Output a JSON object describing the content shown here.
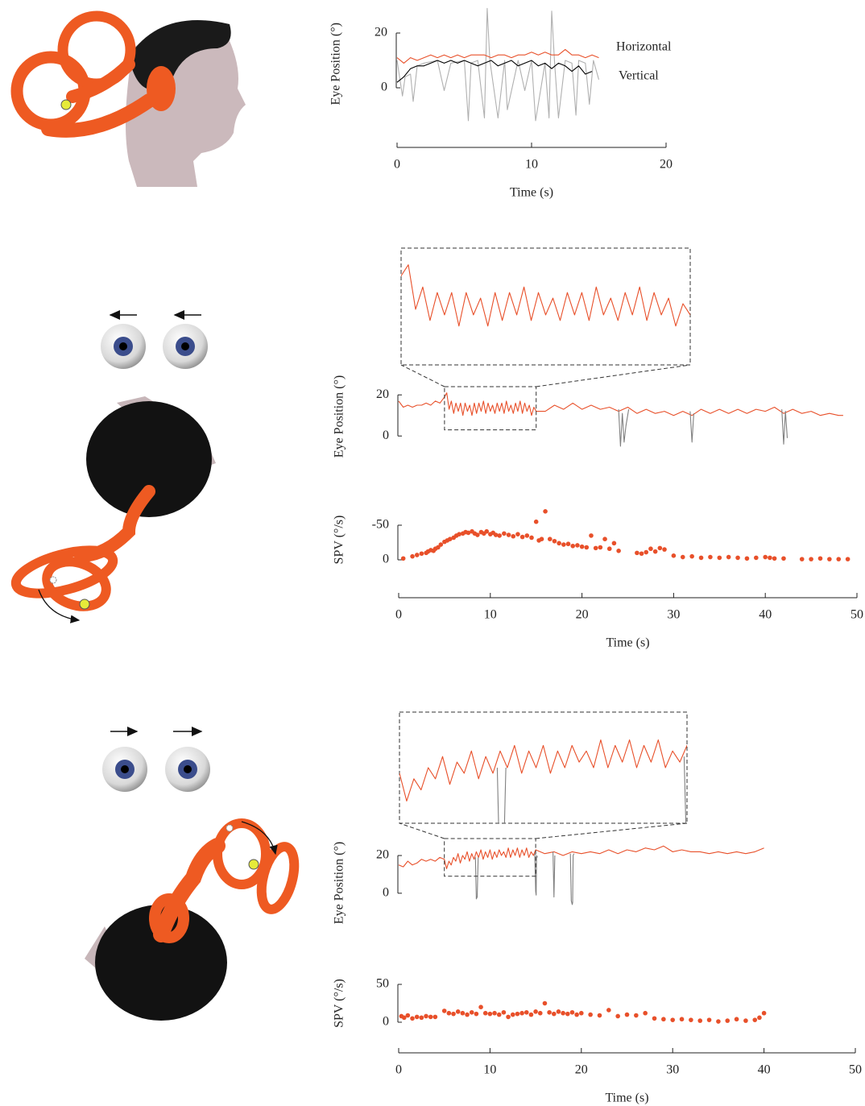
{
  "chart_data": [
    {
      "type": "line",
      "ylabel": "Eye Position (°)",
      "xlabel": "Time (s)",
      "xlim": [
        0,
        20
      ],
      "xticks": [
        0,
        10,
        20
      ],
      "ylim": [
        -12.5,
        30
      ],
      "yticks": [
        0,
        20
      ],
      "legend": "right",
      "series": [
        {
          "color": "#b0b0b0",
          "x": [
            0,
            0.4,
            0.6,
            1,
            1.2,
            1.5,
            2,
            3,
            3.5,
            4,
            5,
            5.3,
            5.5,
            6,
            6.5,
            6.7,
            6.9,
            7.5,
            8,
            8.2,
            9,
            9.5,
            10,
            10.3,
            11,
            11.3,
            11.5,
            11.7,
            12,
            12.5,
            13,
            13.3,
            13.5,
            14,
            14.3,
            14.6,
            15
          ],
          "values": [
            10,
            -3,
            4,
            5,
            -5,
            8,
            9,
            10,
            -1,
            9,
            10,
            -12,
            9,
            10,
            -11,
            29,
            10,
            -11,
            10,
            -8,
            10,
            -1,
            10,
            -12,
            9,
            -11,
            28,
            10,
            -11,
            10,
            9,
            -10,
            10,
            9,
            -6,
            10,
            3
          ]
        },
        {
          "name": "Vertical",
          "color": "#000000",
          "x": [
            0,
            0.5,
            1,
            1.5,
            2,
            2.5,
            3,
            3.5,
            4,
            4.5,
            5,
            5.5,
            6,
            6.5,
            7,
            7.5,
            8,
            8.5,
            9,
            9.5,
            10,
            10.5,
            11,
            11.5,
            12,
            12.5,
            13,
            13.5,
            14,
            14.5
          ],
          "values": [
            2,
            4,
            7,
            8,
            8,
            9,
            10,
            9,
            10,
            9,
            10,
            9,
            8,
            9,
            10,
            8,
            9,
            10,
            8,
            9,
            10,
            8,
            9,
            7,
            9,
            8,
            6,
            8,
            5,
            6
          ]
        },
        {
          "name": "Horizontal",
          "color": "#e8502a",
          "x": [
            0,
            0.5,
            1,
            1.5,
            2,
            2.5,
            3,
            3.5,
            4,
            4.5,
            5,
            5.5,
            6,
            6.5,
            7,
            7.5,
            8,
            8.5,
            9,
            9.5,
            10,
            10.5,
            11,
            11.5,
            12,
            12.5,
            13,
            13.5,
            14,
            14.5,
            15
          ],
          "values": [
            11,
            9,
            11,
            10,
            11,
            12,
            11,
            12,
            11,
            12,
            11,
            12,
            12,
            12,
            11,
            12,
            12,
            11,
            12,
            12,
            13,
            12,
            13,
            12,
            12,
            14,
            12,
            12,
            11,
            12,
            11
          ]
        }
      ]
    },
    {
      "type": "line",
      "ylabel": "Eye Position (°)",
      "xlim": [
        0,
        50
      ],
      "ylim": [
        -5,
        24
      ],
      "yticks": [
        0,
        20
      ],
      "inset": {
        "xlim": [
          5,
          15
        ],
        "ylim": [
          3,
          24
        ]
      },
      "series": [
        {
          "color": "#e8502a",
          "x": [
            0,
            0.5,
            1,
            1.5,
            2,
            2.5,
            3,
            3.5,
            4,
            4.5,
            5,
            5.25,
            5.5,
            5.75,
            6,
            6.25,
            6.5,
            6.75,
            7,
            7.25,
            7.5,
            7.75,
            8,
            8.25,
            8.5,
            8.75,
            9,
            9.25,
            9.5,
            9.75,
            10,
            10.25,
            10.5,
            10.75,
            11,
            11.25,
            11.5,
            11.75,
            12,
            12.25,
            12.5,
            12.75,
            13,
            13.25,
            13.5,
            13.75,
            14,
            14.25,
            14.5,
            14.75,
            15,
            16,
            17,
            18,
            19,
            20,
            21,
            22,
            23,
            24,
            25,
            26,
            27,
            28,
            29,
            30,
            31,
            32,
            33,
            34,
            35,
            36,
            37,
            38,
            39,
            40,
            41,
            42,
            43,
            44,
            45,
            46,
            47,
            48,
            48.5
          ],
          "values": [
            17,
            14,
            15,
            14,
            15,
            15,
            16,
            15,
            17,
            16,
            19,
            21,
            13,
            17,
            11,
            16,
            12,
            16,
            10,
            16,
            12,
            15,
            10,
            16,
            11,
            16,
            12,
            17,
            11,
            16,
            12,
            15,
            11,
            16,
            12,
            16,
            11,
            17,
            12,
            15,
            11,
            16,
            12,
            17,
            11,
            16,
            12,
            15,
            10,
            14,
            12,
            12,
            15,
            13,
            16,
            13,
            15,
            13,
            14,
            12,
            14,
            11,
            13,
            11,
            12,
            10,
            12,
            10,
            13,
            11,
            13,
            11,
            13,
            11,
            13,
            12,
            14,
            11,
            13,
            11,
            12,
            10,
            11,
            10,
            10
          ]
        },
        {
          "color": "#808080",
          "x": [
            24,
            24.2,
            24.4,
            24.6,
            24.8,
            25.1,
            25.2,
            31.8,
            32,
            32.2,
            32.3,
            41.8,
            42,
            42.2,
            42.4
          ],
          "values": [
            13,
            -5,
            11,
            -3,
            5,
            13,
            null,
            12,
            -3,
            11,
            null,
            13,
            -4,
            12,
            -1
          ]
        }
      ]
    },
    {
      "type": "scatter",
      "ylabel": "SPV (°/s)",
      "xlabel": "Time (s)",
      "color": "#e8502a",
      "xlim": [
        0,
        50
      ],
      "xticks": [
        0,
        10,
        20,
        30,
        40,
        50
      ],
      "ylim": [
        12,
        -70
      ],
      "yticks": [
        -50,
        0
      ],
      "x": [
        0.5,
        1.5,
        2,
        2.5,
        3,
        3.2,
        3.5,
        3.8,
        4,
        4.3,
        4.6,
        5,
        5.3,
        5.6,
        6,
        6.3,
        6.6,
        7,
        7.3,
        7.6,
        8,
        8.3,
        8.6,
        9,
        9.3,
        9.6,
        10,
        10.3,
        10.6,
        11,
        11.5,
        12,
        12.5,
        13,
        13.5,
        14,
        14.5,
        15,
        15.3,
        15.6,
        16,
        16.5,
        17,
        17.5,
        18,
        18.5,
        19,
        19.5,
        20,
        20.5,
        21,
        21.5,
        22,
        22.5,
        23,
        23.5,
        24,
        26,
        26.5,
        27,
        27.5,
        28,
        28.5,
        29,
        30,
        31,
        32,
        33,
        34,
        35,
        36,
        37,
        38,
        39,
        40,
        40.5,
        41,
        42,
        44,
        45,
        46,
        47,
        48,
        49
      ],
      "values": [
        -2,
        -5,
        -7,
        -9,
        -10,
        -12,
        -14,
        -13,
        -16,
        -18,
        -22,
        -26,
        -28,
        -30,
        -32,
        -35,
        -37,
        -38,
        -40,
        -39,
        -41,
        -38,
        -36,
        -40,
        -38,
        -41,
        -37,
        -39,
        -36,
        -35,
        -38,
        -36,
        -34,
        -37,
        -33,
        -35,
        -32,
        -55,
        -28,
        -30,
        -70,
        -30,
        -27,
        -24,
        -22,
        -23,
        -20,
        -21,
        -19,
        -18,
        -35,
        -17,
        -18,
        -30,
        -16,
        -24,
        -13,
        -10,
        -9,
        -11,
        -16,
        -12,
        -17,
        -15,
        -6,
        -4,
        -5,
        -3,
        -4,
        -3,
        -4,
        -3,
        -2,
        -3,
        -4,
        -3,
        -2,
        -2,
        -1,
        -1,
        -2,
        -1,
        -1,
        -1
      ]
    },
    {
      "type": "line",
      "ylabel": "Eye Position (°)",
      "xlim": [
        0,
        50
      ],
      "ylim": [
        -15,
        26
      ],
      "yticks": [
        0,
        20
      ],
      "inset": {
        "xlim": [
          5,
          15
        ],
        "ylim": [
          9,
          29
        ]
      },
      "series": [
        {
          "color": "#e8502a",
          "x": [
            0,
            0.5,
            1,
            1.5,
            2,
            2.5,
            3,
            3.5,
            4,
            4.5,
            5,
            5.25,
            5.5,
            5.75,
            6,
            6.25,
            6.5,
            6.75,
            7,
            7.25,
            7.5,
            7.75,
            8,
            8.25,
            8.5,
            8.75,
            9,
            9.25,
            9.5,
            9.75,
            10,
            10.25,
            10.5,
            10.75,
            11,
            11.25,
            11.5,
            11.75,
            12,
            12.25,
            12.5,
            12.75,
            13,
            13.25,
            13.5,
            13.75,
            14,
            14.25,
            14.5,
            14.75,
            15,
            16,
            17,
            18,
            19,
            20,
            21,
            22,
            23,
            24,
            25,
            26,
            27,
            28,
            29,
            30,
            31,
            32,
            33,
            34,
            35,
            36,
            37,
            38,
            39,
            40
          ],
          "values": [
            15,
            14,
            17,
            15,
            16,
            18,
            17,
            18,
            17,
            19,
            18,
            13,
            17,
            15,
            19,
            17,
            21,
            16,
            20,
            18,
            22,
            17,
            21,
            18,
            22,
            19,
            23,
            18,
            22,
            19,
            23,
            18,
            22,
            19,
            23,
            20,
            22,
            19,
            24,
            19,
            23,
            20,
            24,
            19,
            23,
            20,
            24,
            19,
            22,
            20,
            23,
            21,
            22,
            20,
            22,
            21,
            22,
            21,
            23,
            21,
            23,
            22,
            24,
            23,
            25,
            22,
            23,
            22,
            22,
            21,
            22,
            21,
            22,
            21,
            22,
            24
          ]
        },
        {
          "color": "#808080",
          "x": [
            8.4,
            8.5,
            8.6,
            8.7,
            8.8,
            14.9,
            15,
            15.05,
            15.1,
            15.2,
            15.3,
            16.9,
            17,
            17.1,
            17.2,
            18.8,
            18.9,
            19,
            19.05,
            19.1,
            19.2
          ],
          "values": [
            19,
            -3,
            -2,
            19,
            null,
            21,
            1,
            -1,
            20,
            19,
            null,
            22,
            -2,
            20,
            null,
            21,
            -4,
            -6,
            -5,
            20,
            21
          ]
        }
      ]
    },
    {
      "type": "scatter",
      "ylabel": "SPV (°/s)",
      "xlabel": "Time (s)",
      "color": "#e8502a",
      "xlim": [
        0,
        50
      ],
      "xticks": [
        0,
        10,
        20,
        30,
        40,
        50
      ],
      "ylim": [
        -8,
        58
      ],
      "yticks": [
        0,
        50
      ],
      "x": [
        0.3,
        0.6,
        1,
        1.5,
        2,
        2.5,
        3,
        3.5,
        4,
        5,
        5.5,
        6,
        6.5,
        7,
        7.5,
        8,
        8.5,
        9,
        9.5,
        10,
        10.5,
        11,
        11.5,
        12,
        12.5,
        13,
        13.5,
        14,
        14.5,
        15,
        15.5,
        16,
        16.5,
        17,
        17.5,
        18,
        18.5,
        19,
        19.5,
        20,
        21,
        22,
        23,
        24,
        25,
        26,
        27,
        28,
        29,
        30,
        31,
        32,
        33,
        34,
        35,
        36,
        37,
        38,
        39,
        39.5,
        40
      ],
      "values": [
        8,
        6,
        9,
        5,
        7,
        6,
        8,
        7,
        7,
        15,
        12,
        11,
        14,
        12,
        10,
        13,
        11,
        20,
        12,
        11,
        12,
        10,
        13,
        7,
        10,
        11,
        12,
        13,
        10,
        14,
        12,
        25,
        13,
        11,
        14,
        12,
        11,
        13,
        10,
        12,
        10,
        9,
        16,
        8,
        10,
        9,
        12,
        5,
        4,
        3,
        4,
        3,
        2,
        3,
        1,
        2,
        4,
        2,
        3,
        6,
        12
      ]
    }
  ]
}
